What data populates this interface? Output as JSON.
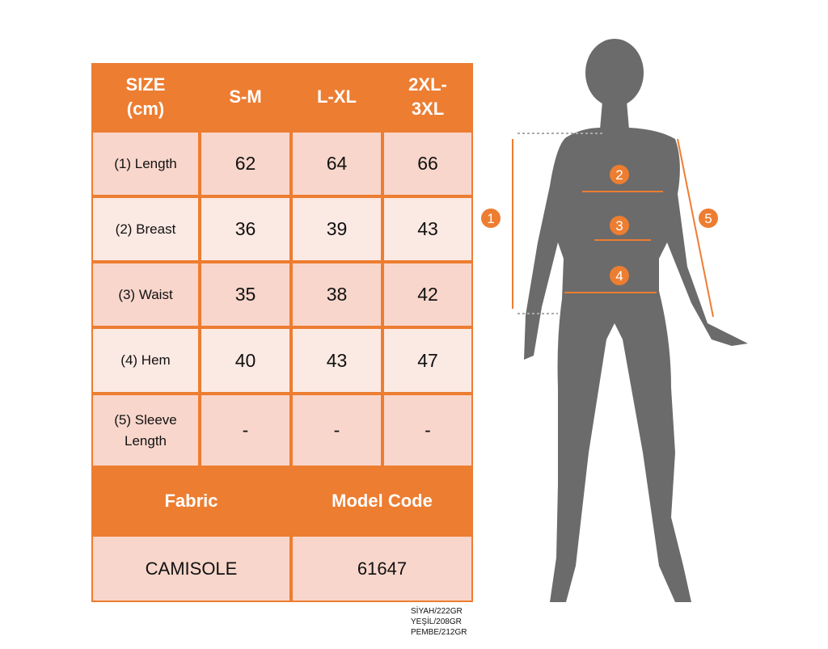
{
  "table": {
    "header": [
      "SIZE\n(cm)",
      "S-M",
      "L-XL",
      "2XL-\n3XL"
    ],
    "rows": [
      {
        "label": "(1) Length",
        "values": [
          "62",
          "64",
          "66"
        ]
      },
      {
        "label": "(2) Breast",
        "values": [
          "36",
          "39",
          "43"
        ]
      },
      {
        "label": "(3) Waist",
        "values": [
          "35",
          "38",
          "42"
        ]
      },
      {
        "label": "(4) Hem",
        "values": [
          "40",
          "43",
          "47"
        ]
      },
      {
        "label": "(5) Sleeve Length",
        "values": [
          "-",
          "-",
          "-"
        ]
      }
    ],
    "footer_header": [
      "Fabric",
      "Model Code"
    ],
    "footer_values": [
      "CAMISOLE",
      "61647"
    ]
  },
  "notes": [
    "SİYAH/222GR",
    "YEŞİL/208GR",
    "PEMBE/212GR"
  ],
  "figure": {
    "markers": [
      "1",
      "2",
      "3",
      "4",
      "5"
    ]
  },
  "colors": {
    "accent": "#ed7d31",
    "cell_dark": "#f8d6cb",
    "cell_light": "#fbe9e3",
    "silhouette": "#6b6b6b"
  }
}
